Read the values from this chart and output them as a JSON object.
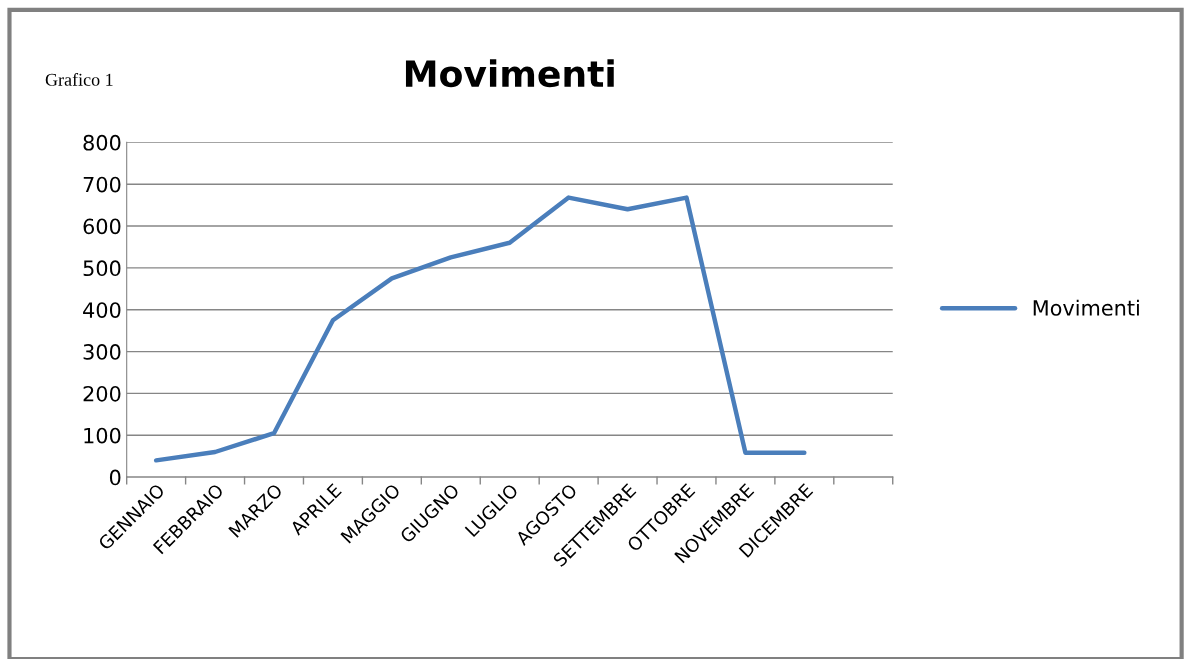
{
  "chart_data": {
    "type": "line",
    "title": "Movimenti",
    "annotations": [
      "Grafico 1"
    ],
    "categories": [
      "GENNAIO",
      "FEBBRAIO",
      "MARZO",
      "APRILE",
      "MAGGIO",
      "GIUGNO",
      "LUGLIO",
      "AGOSTO",
      "SETTEMBRE",
      "OTTOBRE",
      "NOVEMBRE",
      "DICEMBRE",
      null
    ],
    "series": [
      {
        "name": "Movimenti",
        "color": "#4a7ebb",
        "values": [
          40,
          60,
          105,
          375,
          475,
          525,
          560,
          668,
          640,
          668,
          58,
          58,
          null
        ]
      }
    ],
    "ylim": [
      0,
      800
    ],
    "yticks": [
      0,
      100,
      200,
      300,
      400,
      500,
      600,
      700,
      800
    ],
    "grid": "y",
    "legend": "right",
    "marker": "none",
    "line_style": "solid"
  }
}
